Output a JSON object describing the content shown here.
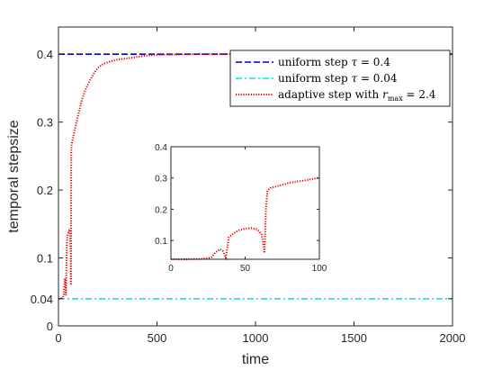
{
  "chart_data": [
    {
      "type": "line",
      "xlabel": "time",
      "ylabel": "temporal stepsize",
      "xlim": [
        0,
        2000
      ],
      "ylim": [
        0,
        0.44
      ],
      "xticks": [
        0,
        500,
        1000,
        1500,
        2000
      ],
      "xtick_labels": [
        "0",
        "500",
        "1000",
        "1500",
        "2000"
      ],
      "yticks": [
        0,
        0.04,
        0.1,
        0.2,
        0.3,
        0.4
      ],
      "ytick_labels": [
        "0",
        "0.04",
        "0.1",
        "0.2",
        "0.3",
        "0.4"
      ],
      "grid": false,
      "legend_position": "top-right",
      "series": [
        {
          "name": "uniform step τ = 0.4",
          "legend_prefix": "uniform step ",
          "legend_symbol": "τ",
          "legend_suffix": " = 0.4",
          "color": "#0000cc",
          "style": "dashed",
          "x": [
            0,
            2000
          ],
          "y": [
            0.4,
            0.4
          ]
        },
        {
          "name": "uniform step τ = 0.04",
          "legend_prefix": "uniform step ",
          "legend_symbol": "τ",
          "legend_suffix": " = 0.04",
          "color": "#00e5ee",
          "style": "dashdot",
          "x": [
            0,
            2000
          ],
          "y": [
            0.04,
            0.04
          ]
        },
        {
          "name": "adaptive step with r_max = 2.4",
          "legend_prefix": "adaptive step with ",
          "legend_symbol": "r",
          "legend_subscript": "max",
          "legend_suffix": " = 2.4",
          "color": "#e60000",
          "style": "dotted",
          "x": [
            0,
            10,
            20,
            27,
            30,
            33,
            35,
            38,
            42,
            46,
            50,
            54,
            58,
            62,
            63,
            65,
            67,
            70,
            75,
            80,
            90,
            100,
            110,
            120,
            140,
            160,
            180,
            200,
            230,
            260,
            300,
            350,
            400,
            450,
            500,
            700,
            1000,
            1500,
            2000
          ],
          "y": [
            0.04,
            0.04,
            0.041,
            0.045,
            0.06,
            0.07,
            0.065,
            0.045,
            0.12,
            0.133,
            0.138,
            0.14,
            0.136,
            0.11,
            0.06,
            0.26,
            0.268,
            0.272,
            0.278,
            0.285,
            0.298,
            0.31,
            0.322,
            0.334,
            0.35,
            0.362,
            0.372,
            0.38,
            0.386,
            0.389,
            0.392,
            0.394,
            0.396,
            0.398,
            0.399,
            0.4,
            0.4,
            0.4,
            0.4
          ]
        }
      ]
    },
    {
      "type": "line",
      "role": "inset",
      "xlim": [
        0,
        100
      ],
      "ylim": [
        0.04,
        0.4
      ],
      "xticks": [
        0,
        50,
        100
      ],
      "xtick_labels": [
        "0",
        "50",
        "100"
      ],
      "yticks": [
        0.1,
        0.2,
        0.3,
        0.4
      ],
      "ytick_labels": [
        "0.1",
        "0.2",
        "0.3",
        "0.4"
      ],
      "series": [
        {
          "color": "#e60000",
          "style": "dotted",
          "x": [
            0,
            10,
            20,
            27,
            30,
            33,
            35,
            37,
            39,
            42,
            46,
            50,
            54,
            58,
            61,
            62,
            63,
            64,
            65,
            67,
            70,
            75,
            80,
            90,
            100
          ],
          "y": [
            0.04,
            0.04,
            0.041,
            0.045,
            0.062,
            0.072,
            0.066,
            0.045,
            0.11,
            0.122,
            0.133,
            0.138,
            0.14,
            0.136,
            0.12,
            0.095,
            0.06,
            0.2,
            0.26,
            0.268,
            0.272,
            0.278,
            0.285,
            0.292,
            0.301
          ]
        }
      ]
    }
  ]
}
